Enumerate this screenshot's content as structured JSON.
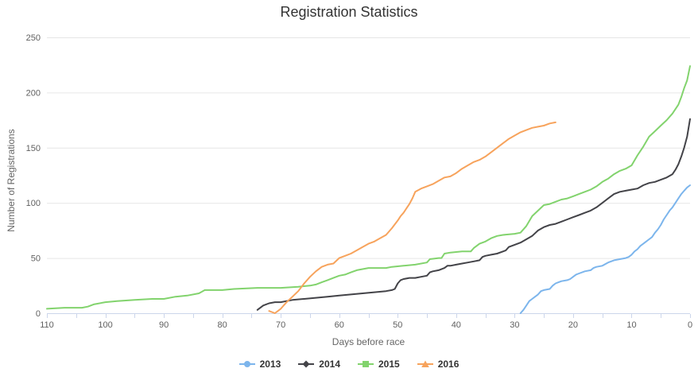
{
  "chart_data": {
    "type": "line",
    "title": "Registration Statistics",
    "xlabel": "Days before race",
    "ylabel": "Number of Registrations",
    "x_axis": {
      "reversed": true,
      "min": 0,
      "max": 110,
      "tick_step": 5,
      "tick_labels": [
        110,
        100,
        90,
        80,
        70,
        60,
        50,
        40,
        30,
        20,
        10,
        0
      ]
    },
    "y_axis": {
      "min": 0,
      "max": 250,
      "tick_labels": [
        0,
        50,
        100,
        150,
        200,
        250
      ]
    },
    "grid": "horizontal-only",
    "legend_position": "bottom-center",
    "series": [
      {
        "name": "2013",
        "color": "#7cb5ec",
        "marker": "circle",
        "points": [
          [
            29,
            0
          ],
          [
            28.5,
            3
          ],
          [
            28,
            7
          ],
          [
            27.5,
            11
          ],
          [
            27,
            13
          ],
          [
            26.5,
            15
          ],
          [
            26,
            17
          ],
          [
            25.5,
            20
          ],
          [
            25,
            21
          ],
          [
            24,
            22
          ],
          [
            23.5,
            25
          ],
          [
            23,
            27
          ],
          [
            22.5,
            28
          ],
          [
            22,
            29
          ],
          [
            21,
            30
          ],
          [
            20.5,
            31
          ],
          [
            20,
            33
          ],
          [
            19.5,
            35
          ],
          [
            19,
            36
          ],
          [
            18,
            38
          ],
          [
            17,
            39
          ],
          [
            16.5,
            41
          ],
          [
            16,
            42
          ],
          [
            15,
            43
          ],
          [
            14,
            46
          ],
          [
            13.5,
            47
          ],
          [
            13,
            48
          ],
          [
            12,
            49
          ],
          [
            11,
            50
          ],
          [
            10.5,
            51
          ],
          [
            10,
            53
          ],
          [
            9.5,
            56
          ],
          [
            9,
            58
          ],
          [
            8.5,
            61
          ],
          [
            8,
            63
          ],
          [
            7.5,
            65
          ],
          [
            7,
            67
          ],
          [
            6.5,
            69
          ],
          [
            6,
            73
          ],
          [
            5.5,
            76
          ],
          [
            5,
            80
          ],
          [
            4.5,
            85
          ],
          [
            4,
            89
          ],
          [
            3.5,
            93
          ],
          [
            3,
            96
          ],
          [
            2.5,
            100
          ],
          [
            2,
            104
          ],
          [
            1.5,
            108
          ],
          [
            1,
            111
          ],
          [
            0.5,
            114
          ],
          [
            0,
            116
          ]
        ]
      },
      {
        "name": "2014",
        "color": "#434348",
        "marker": "diamond",
        "points": [
          [
            74,
            3
          ],
          [
            73,
            7
          ],
          [
            72,
            9
          ],
          [
            71,
            10
          ],
          [
            70,
            10
          ],
          [
            69,
            11
          ],
          [
            68,
            12
          ],
          [
            66,
            13
          ],
          [
            64,
            14
          ],
          [
            62,
            15
          ],
          [
            60,
            16
          ],
          [
            58,
            17
          ],
          [
            56,
            18
          ],
          [
            54,
            19
          ],
          [
            52,
            20
          ],
          [
            51,
            21
          ],
          [
            50.5,
            22
          ],
          [
            50,
            27
          ],
          [
            49.5,
            30
          ],
          [
            49,
            31
          ],
          [
            48,
            32
          ],
          [
            47,
            32
          ],
          [
            46,
            33
          ],
          [
            45,
            34
          ],
          [
            44.5,
            37
          ],
          [
            44,
            38
          ],
          [
            43,
            39
          ],
          [
            42,
            41
          ],
          [
            41.5,
            43
          ],
          [
            41,
            43
          ],
          [
            40,
            44
          ],
          [
            39,
            45
          ],
          [
            38,
            46
          ],
          [
            37,
            47
          ],
          [
            36,
            48
          ],
          [
            35.5,
            51
          ],
          [
            35,
            52
          ],
          [
            34,
            53
          ],
          [
            33,
            54
          ],
          [
            32,
            56
          ],
          [
            31.5,
            57
          ],
          [
            31,
            60
          ],
          [
            30,
            62
          ],
          [
            29,
            64
          ],
          [
            28,
            67
          ],
          [
            27,
            70
          ],
          [
            26,
            75
          ],
          [
            25,
            78
          ],
          [
            24,
            80
          ],
          [
            23,
            81
          ],
          [
            22,
            83
          ],
          [
            21,
            85
          ],
          [
            20,
            87
          ],
          [
            19,
            89
          ],
          [
            18,
            91
          ],
          [
            17,
            93
          ],
          [
            16,
            96
          ],
          [
            15,
            100
          ],
          [
            14,
            104
          ],
          [
            13,
            108
          ],
          [
            12,
            110
          ],
          [
            11,
            111
          ],
          [
            10,
            112
          ],
          [
            9,
            113
          ],
          [
            8,
            116
          ],
          [
            7,
            118
          ],
          [
            6,
            119
          ],
          [
            5,
            121
          ],
          [
            4,
            123
          ],
          [
            3,
            126
          ],
          [
            2.5,
            130
          ],
          [
            2,
            135
          ],
          [
            1.5,
            142
          ],
          [
            1,
            150
          ],
          [
            0.5,
            160
          ],
          [
            0,
            176
          ]
        ]
      },
      {
        "name": "2015",
        "color": "#82d36d",
        "marker": "square",
        "points": [
          [
            110,
            4
          ],
          [
            107,
            5
          ],
          [
            104,
            5
          ],
          [
            103,
            6
          ],
          [
            102,
            8
          ],
          [
            100,
            10
          ],
          [
            98,
            11
          ],
          [
            95,
            12
          ],
          [
            92,
            13
          ],
          [
            90,
            13
          ],
          [
            88,
            15
          ],
          [
            86,
            16
          ],
          [
            84,
            18
          ],
          [
            83,
            21
          ],
          [
            80,
            21
          ],
          [
            78,
            22
          ],
          [
            74,
            23
          ],
          [
            70,
            23
          ],
          [
            67,
            24
          ],
          [
            65,
            25
          ],
          [
            64,
            26
          ],
          [
            63,
            28
          ],
          [
            62,
            30
          ],
          [
            61,
            32
          ],
          [
            60,
            34
          ],
          [
            59,
            35
          ],
          [
            58,
            37
          ],
          [
            57,
            39
          ],
          [
            56,
            40
          ],
          [
            55,
            41
          ],
          [
            52,
            41
          ],
          [
            51,
            42
          ],
          [
            49,
            43
          ],
          [
            47,
            44
          ],
          [
            45,
            46
          ],
          [
            44.5,
            49
          ],
          [
            43,
            50
          ],
          [
            42.5,
            50
          ],
          [
            42,
            54
          ],
          [
            41,
            55
          ],
          [
            39,
            56
          ],
          [
            37.5,
            56
          ],
          [
            37,
            59
          ],
          [
            36,
            63
          ],
          [
            35,
            65
          ],
          [
            34,
            68
          ],
          [
            33,
            70
          ],
          [
            32,
            71
          ],
          [
            30,
            72
          ],
          [
            29,
            73
          ],
          [
            28,
            79
          ],
          [
            27,
            88
          ],
          [
            26,
            93
          ],
          [
            25,
            98
          ],
          [
            24,
            99
          ],
          [
            23,
            101
          ],
          [
            22,
            103
          ],
          [
            21,
            104
          ],
          [
            20,
            106
          ],
          [
            19,
            108
          ],
          [
            18,
            110
          ],
          [
            17,
            112
          ],
          [
            16,
            115
          ],
          [
            15,
            119
          ],
          [
            14,
            122
          ],
          [
            13,
            126
          ],
          [
            12,
            129
          ],
          [
            11,
            131
          ],
          [
            10,
            134
          ],
          [
            9,
            143
          ],
          [
            8,
            151
          ],
          [
            7,
            160
          ],
          [
            6,
            165
          ],
          [
            5,
            170
          ],
          [
            4,
            175
          ],
          [
            3,
            181
          ],
          [
            2,
            189
          ],
          [
            1.5,
            196
          ],
          [
            1,
            204
          ],
          [
            0.5,
            211
          ],
          [
            0,
            224
          ]
        ]
      },
      {
        "name": "2016",
        "color": "#f7a35c",
        "marker": "triangle",
        "points": [
          [
            72,
            2
          ],
          [
            71,
            0
          ],
          [
            70,
            4
          ],
          [
            69,
            10
          ],
          [
            68,
            15
          ],
          [
            67,
            20
          ],
          [
            66,
            27
          ],
          [
            65,
            33
          ],
          [
            64,
            38
          ],
          [
            63,
            42
          ],
          [
            62,
            44
          ],
          [
            61,
            45
          ],
          [
            60,
            50
          ],
          [
            59,
            52
          ],
          [
            58,
            54
          ],
          [
            57,
            57
          ],
          [
            56,
            60
          ],
          [
            55,
            63
          ],
          [
            54,
            65
          ],
          [
            53,
            68
          ],
          [
            52,
            71
          ],
          [
            51,
            77
          ],
          [
            50,
            84
          ],
          [
            49.5,
            88
          ],
          [
            49,
            91
          ],
          [
            48.5,
            95
          ],
          [
            48,
            99
          ],
          [
            47.5,
            104
          ],
          [
            47,
            110
          ],
          [
            46,
            113
          ],
          [
            45,
            115
          ],
          [
            44,
            117
          ],
          [
            43,
            120
          ],
          [
            42,
            123
          ],
          [
            41,
            124
          ],
          [
            40,
            127
          ],
          [
            39,
            131
          ],
          [
            38,
            134
          ],
          [
            37,
            137
          ],
          [
            36,
            139
          ],
          [
            35,
            142
          ],
          [
            34,
            146
          ],
          [
            33,
            150
          ],
          [
            32,
            154
          ],
          [
            31,
            158
          ],
          [
            30,
            161
          ],
          [
            29,
            164
          ],
          [
            28,
            166
          ],
          [
            27,
            168
          ],
          [
            26,
            169
          ],
          [
            25,
            170
          ],
          [
            24,
            172
          ],
          [
            23,
            173
          ]
        ]
      }
    ],
    "styles": {
      "background": "#ffffff",
      "grid_color": "#e6e6e6",
      "axis_line_color": "#ccd6eb",
      "tick_color": "#ccd6eb",
      "tick_label_color": "#606060",
      "axis_title_color": "#666666",
      "title_color": "#333333",
      "legend_text_color": "#333333"
    }
  }
}
